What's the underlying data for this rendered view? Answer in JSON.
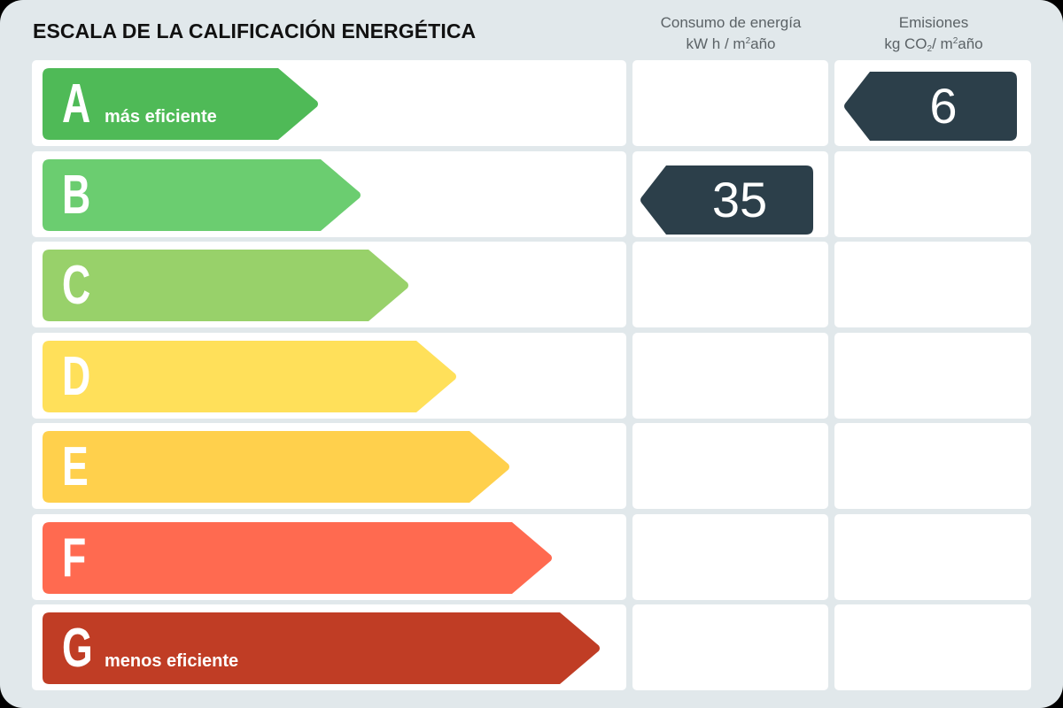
{
  "title": "ESCALA DE LA CALIFICACIÓN ENERGÉTICA",
  "columns": {
    "consumption": {
      "line1": "Consumo de energía",
      "line2_pre": "kW h / m",
      "sup": "2",
      "line2_post": "año"
    },
    "emissions": {
      "line1": "Emisiones",
      "line2_pre": "kg CO",
      "sub": "2",
      "line2_mid": "/ m",
      "sup": "2",
      "line2_post": "año"
    }
  },
  "classes": [
    {
      "letter": "A",
      "label": "más eficiente",
      "color": "#4fba57"
    },
    {
      "letter": "B",
      "label": "",
      "color": "#6bcd70"
    },
    {
      "letter": "C",
      "label": "",
      "color": "#98d16a"
    },
    {
      "letter": "D",
      "label": "",
      "color": "#ffe05a"
    },
    {
      "letter": "E",
      "label": "",
      "color": "#ffd04c"
    },
    {
      "letter": "F",
      "label": "",
      "color": "#ff6a50"
    },
    {
      "letter": "G",
      "label": "menos eficiente",
      "color": "#c03d25"
    }
  ],
  "ratings": {
    "consumption": {
      "class": "B",
      "value": "35"
    },
    "emissions": {
      "class": "A",
      "value": "6"
    }
  },
  "badge_color": "#2c3f4a",
  "chart_data": {
    "type": "table",
    "title": "ESCALA DE LA CALIFICACIÓN ENERGÉTICA",
    "categories": [
      "A",
      "B",
      "C",
      "D",
      "E",
      "F",
      "G"
    ],
    "scale_labels": {
      "A": "más eficiente",
      "G": "menos eficiente"
    },
    "series": [
      {
        "name": "Consumo de energía (kW h / m²año)",
        "class": "B",
        "value": 35
      },
      {
        "name": "Emisiones (kg CO₂/ m²año)",
        "class": "A",
        "value": 6
      }
    ]
  }
}
